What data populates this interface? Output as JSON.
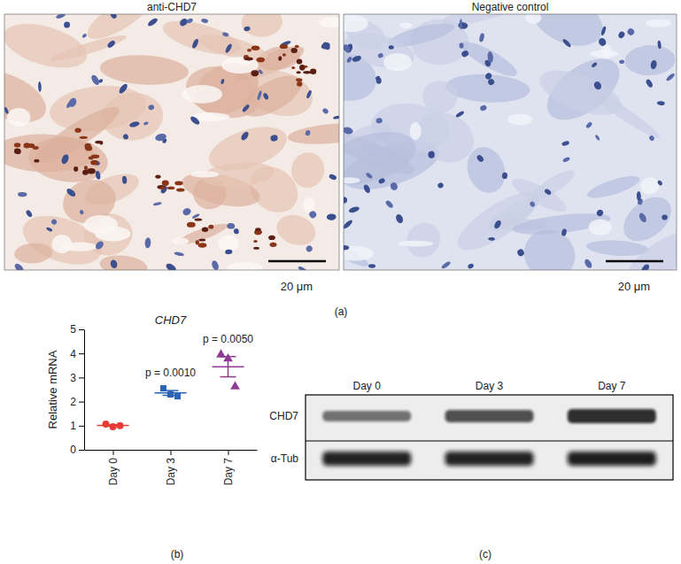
{
  "chart_data": {
    "type": "scatter",
    "label": "(b)",
    "title": "CHD7",
    "y_label": "Relative mRNA",
    "categories": [
      "Day 0",
      "Day 3",
      "Day 7"
    ],
    "ylim": [
      0,
      5
    ],
    "yticks": [
      0,
      1,
      2,
      3,
      4,
      5
    ],
    "grid": false,
    "series": [
      {
        "color": "#e53c35",
        "marker": "circle",
        "values": [
          1.07,
          0.96,
          1.0
        ],
        "mean": 1.01,
        "error": 0.03
      },
      {
        "color": "#2b64b4",
        "marker": "square",
        "values": [
          2.55,
          2.3,
          2.22
        ],
        "mean": 2.36,
        "error": 0.1,
        "annotation": "p = 0.0010"
      },
      {
        "color": "#8e3c93",
        "marker": "triangle",
        "values": [
          3.95,
          3.78,
          2.62
        ],
        "mean": 3.45,
        "error": 0.42,
        "annotation": "p = 0.0050"
      }
    ]
  },
  "panel_a": {
    "label": "(a)",
    "images": [
      {
        "title": "anti-CHD7",
        "scale_bar": "20 μm"
      },
      {
        "title": "Negative control",
        "scale_bar": "20 μm"
      }
    ]
  },
  "panel_c": {
    "label": "(c)",
    "lanes": [
      "Day 0",
      "Day 3",
      "Day 7"
    ],
    "rows": [
      "CHD7",
      "α-Tub"
    ]
  }
}
